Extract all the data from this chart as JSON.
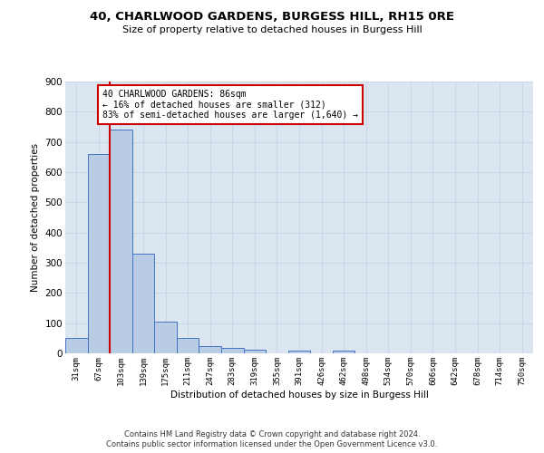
{
  "title": "40, CHARLWOOD GARDENS, BURGESS HILL, RH15 0RE",
  "subtitle": "Size of property relative to detached houses in Burgess Hill",
  "xlabel": "Distribution of detached houses by size in Burgess Hill",
  "ylabel": "Number of detached properties",
  "bar_labels": [
    "31sqm",
    "67sqm",
    "103sqm",
    "139sqm",
    "175sqm",
    "211sqm",
    "247sqm",
    "283sqm",
    "319sqm",
    "355sqm",
    "391sqm",
    "426sqm",
    "462sqm",
    "498sqm",
    "534sqm",
    "570sqm",
    "606sqm",
    "642sqm",
    "678sqm",
    "714sqm",
    "750sqm"
  ],
  "bar_values": [
    50,
    660,
    740,
    330,
    105,
    50,
    25,
    17,
    12,
    0,
    8,
    0,
    8,
    0,
    0,
    0,
    0,
    0,
    0,
    0,
    0
  ],
  "bar_color": "#b8cce4",
  "bar_edgecolor": "#4472c4",
  "grid_color": "#c8d8e8",
  "bg_color": "#dce6f1",
  "property_line_color": "#cc0000",
  "annotation_text": "40 CHARLWOOD GARDENS: 86sqm\n← 16% of detached houses are smaller (312)\n83% of semi-detached houses are larger (1,640) →",
  "annotation_box_color": "#cc0000",
  "ylim": [
    0,
    900
  ],
  "yticks": [
    0,
    100,
    200,
    300,
    400,
    500,
    600,
    700,
    800,
    900
  ],
  "footer1": "Contains HM Land Registry data © Crown copyright and database right 2024.",
  "footer2": "Contains public sector information licensed under the Open Government Licence v3.0."
}
